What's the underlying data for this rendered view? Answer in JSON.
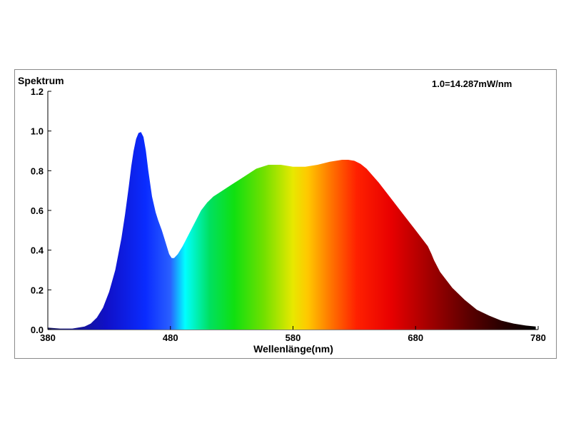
{
  "chart_data": {
    "type": "area",
    "ylabel": "Spektrum",
    "xlabel": "Wellenlänge(nm)",
    "annotation": "1.0=14.287mW/nm",
    "xlim": [
      380,
      780
    ],
    "ylim": [
      0,
      1.2
    ],
    "xticks": [
      380,
      480,
      580,
      680,
      780
    ],
    "yticks": [
      0.0,
      0.2,
      0.4,
      0.6,
      0.8,
      1.0,
      1.2
    ],
    "ytick_labels": [
      "0.0",
      "0.2",
      "0.4",
      "0.6",
      "0.8",
      "1.0",
      "1.2"
    ],
    "grid": false,
    "fill": "visible-spectrum gradient",
    "series": [
      {
        "x": [
          380,
          390,
          400,
          410,
          415,
          420,
          425,
          430,
          435,
          440,
          443,
          446,
          448,
          450,
          452,
          454,
          456,
          458,
          460,
          462,
          465,
          468,
          470,
          473,
          475,
          477,
          479,
          481,
          483,
          486,
          490,
          495,
          500,
          505,
          510,
          515,
          520,
          525,
          530,
          540,
          550,
          560,
          570,
          580,
          590,
          600,
          610,
          615,
          620,
          625,
          630,
          635,
          640,
          650,
          660,
          670,
          680,
          690,
          693,
          695,
          700,
          710,
          720,
          730,
          740,
          750,
          760,
          770,
          778
        ],
        "y": [
          0.01,
          0.005,
          0.005,
          0.015,
          0.03,
          0.06,
          0.11,
          0.19,
          0.3,
          0.46,
          0.58,
          0.72,
          0.82,
          0.9,
          0.96,
          0.99,
          0.995,
          0.97,
          0.9,
          0.8,
          0.67,
          0.59,
          0.55,
          0.5,
          0.46,
          0.42,
          0.38,
          0.36,
          0.36,
          0.38,
          0.42,
          0.48,
          0.54,
          0.6,
          0.64,
          0.67,
          0.69,
          0.71,
          0.73,
          0.77,
          0.81,
          0.83,
          0.83,
          0.82,
          0.82,
          0.83,
          0.845,
          0.85,
          0.855,
          0.855,
          0.85,
          0.835,
          0.81,
          0.74,
          0.66,
          0.58,
          0.5,
          0.42,
          0.38,
          0.35,
          0.29,
          0.21,
          0.15,
          0.1,
          0.07,
          0.045,
          0.03,
          0.02,
          0.015
        ]
      }
    ]
  }
}
